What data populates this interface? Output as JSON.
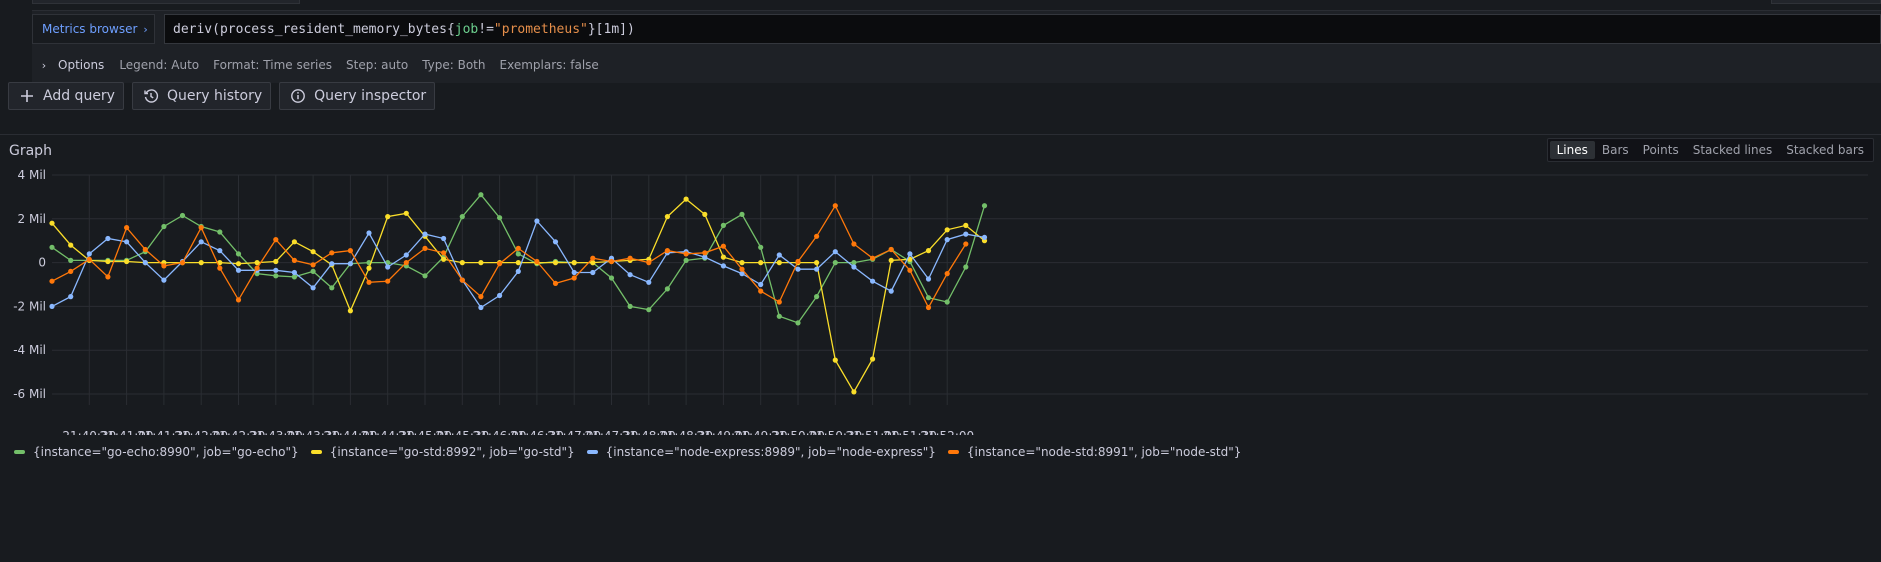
{
  "query": {
    "metrics_browser_label": "Metrics browser",
    "metrics_browser_chevron": "›",
    "expression_tokens": [
      {
        "text": "deriv",
        "cls": "tok-fn"
      },
      {
        "text": "(",
        "cls": "tok-punc"
      },
      {
        "text": "process_resident_memory_bytes",
        "cls": "tok-fn"
      },
      {
        "text": "{",
        "cls": "tok-punc"
      },
      {
        "text": "job",
        "cls": "tok-lbl"
      },
      {
        "text": "!=",
        "cls": "tok-punc"
      },
      {
        "text": "\"prometheus\"",
        "cls": "tok-str"
      },
      {
        "text": "}",
        "cls": "tok-punc"
      },
      {
        "text": "[1m]",
        "cls": "tok-punc"
      },
      {
        "text": ")",
        "cls": "tok-punc"
      }
    ],
    "options": {
      "chevron": "›",
      "title": "Options",
      "items": [
        "Legend: Auto",
        "Format: Time series",
        "Step: auto",
        "Type: Both",
        "Exemplars: false"
      ]
    }
  },
  "buttons": {
    "add_query": "Add query",
    "query_history": "Query history",
    "query_inspector": "Query inspector"
  },
  "graph": {
    "title": "Graph",
    "viz_options": [
      "Lines",
      "Bars",
      "Points",
      "Stacked lines",
      "Stacked bars"
    ],
    "viz_active": "Lines"
  },
  "chart_data": {
    "type": "line",
    "y_ticks": [
      4,
      2,
      0,
      -2,
      -4,
      -6
    ],
    "y_tick_labels": [
      "4 Mil",
      "2 Mil",
      "0",
      "-2 Mil",
      "-4 Mil",
      "-6 Mil"
    ],
    "ylim": [
      -6.5,
      4.0
    ],
    "x_tick_labels": [
      "21:40:30",
      "21:41:00",
      "21:41:30",
      "21:42:00",
      "21:42:30",
      "21:43:00",
      "21:43:30",
      "21:44:00",
      "21:44:30",
      "21:45:00",
      "21:45:30",
      "21:46:00",
      "21:46:30",
      "21:47:00",
      "21:47:30",
      "21:48:00",
      "21:48:30",
      "21:49:00",
      "21:49:30",
      "21:50:00",
      "21:50:30",
      "21:51:00",
      "21:51:30",
      "21:52:00"
    ],
    "x_start": "21:40:00",
    "x_step_seconds": 15,
    "grid": true,
    "legend_position": "bottom",
    "series": [
      {
        "name": "{instance=\"go-echo:8990\", job=\"go-echo\"}",
        "color": "#73bf69",
        "values": [
          0.7,
          0.1,
          0.1,
          0.1,
          0.1,
          0.5,
          1.65,
          2.15,
          1.65,
          1.4,
          0.4,
          -0.5,
          -0.6,
          -0.65,
          -0.4,
          -1.15,
          -0.05,
          0.0,
          0.0,
          -0.15,
          -0.6,
          0.25,
          2.1,
          3.1,
          2.05,
          0.4,
          -0.05,
          0.05,
          0.0,
          0.0,
          -0.7,
          -2.0,
          -2.15,
          -1.2,
          0.1,
          0.2,
          1.7,
          2.2,
          0.7,
          -2.45,
          -2.75,
          -1.55,
          0.0,
          0.0,
          0.15,
          0.6,
          0.05,
          -1.6,
          -1.8,
          -0.2,
          2.6
        ]
      },
      {
        "name": "{instance=\"go-std:8992\", job=\"go-std\"}",
        "color": "#fade2a",
        "values": [
          1.8,
          0.8,
          0.1,
          0.05,
          0.05,
          0.0,
          0.0,
          0.0,
          0.0,
          0.0,
          -0.05,
          0.0,
          0.05,
          0.95,
          0.5,
          -0.1,
          -2.2,
          -0.25,
          2.1,
          2.25,
          1.2,
          0.15,
          0.0,
          0.0,
          0.0,
          0.0,
          0.0,
          0.0,
          0.0,
          0.0,
          0.05,
          0.1,
          0.15,
          2.1,
          2.9,
          2.2,
          0.25,
          0.0,
          0.0,
          0.0,
          0.0,
          0.0,
          -4.45,
          -5.9,
          -4.4,
          0.1,
          0.15,
          0.55,
          1.5,
          1.7,
          1.0
        ]
      },
      {
        "name": "{instance=\"node-express:8989\", job=\"node-express\"}",
        "color": "#8ab8ff",
        "values": [
          -2.0,
          -1.55,
          0.4,
          1.1,
          0.95,
          0.0,
          -0.8,
          0.05,
          0.95,
          0.55,
          -0.35,
          -0.35,
          -0.35,
          -0.45,
          -1.15,
          -0.05,
          -0.05,
          1.35,
          -0.2,
          0.35,
          1.3,
          1.1,
          -0.8,
          -2.05,
          -1.5,
          -0.4,
          1.9,
          0.95,
          -0.45,
          -0.45,
          0.2,
          -0.55,
          -0.9,
          0.45,
          0.5,
          0.25,
          -0.15,
          -0.5,
          -1.0,
          0.35,
          -0.3,
          -0.3,
          0.5,
          -0.2,
          -0.85,
          -1.3,
          0.4,
          -0.75,
          1.05,
          1.3,
          1.15
        ]
      },
      {
        "name": "{instance=\"node-std:8991\", job=\"node-std\"}",
        "color": "#ff780a",
        "values": [
          -0.85,
          -0.4,
          0.15,
          -0.65,
          1.6,
          0.6,
          -0.15,
          0.0,
          1.6,
          -0.25,
          -1.7,
          -0.25,
          1.05,
          0.1,
          -0.1,
          0.45,
          0.55,
          -0.9,
          -0.85,
          0.0,
          0.65,
          0.45,
          -0.8,
          -1.55,
          -0.05,
          0.65,
          0.05,
          -0.95,
          -0.7,
          0.2,
          0.05,
          0.2,
          0.0,
          0.55,
          0.4,
          0.45,
          0.75,
          -0.3,
          -1.3,
          -1.8,
          0.05,
          1.2,
          2.6,
          0.85,
          0.2,
          0.6,
          -0.35,
          -2.05,
          -0.5,
          0.85
        ]
      }
    ]
  }
}
